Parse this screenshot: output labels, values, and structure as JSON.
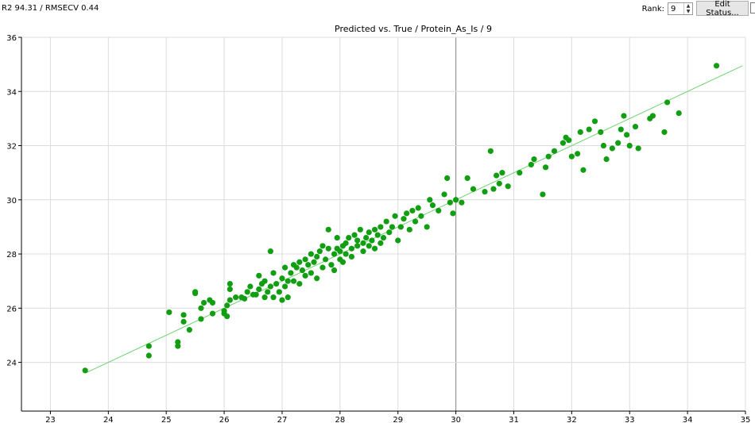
{
  "header": {
    "stats_text": "R2 94.31 / RMSECV 0.44",
    "rank_label": "Rank:",
    "rank_value": "9",
    "edit_button_label": "Edit Status..."
  },
  "chart_data": {
    "type": "scatter",
    "title": "Predicted vs. True / Protein_As_Is / 9",
    "xlabel": "",
    "ylabel": "",
    "xlim": [
      22.5,
      35
    ],
    "ylim": [
      22.2,
      36
    ],
    "x_ticks": [
      23,
      24,
      25,
      26,
      27,
      28,
      29,
      30,
      31,
      32,
      33,
      34,
      35
    ],
    "y_ticks": [
      24,
      26,
      28,
      30,
      32,
      34,
      36
    ],
    "grid": true,
    "highlight_x": 30,
    "colors": {
      "points": "#129e12",
      "fit_line": "#6fd36f",
      "grid": "#dcdcdc",
      "highlight": "#9a9a9a"
    },
    "fit_line": {
      "x": [
        23.6,
        34.95
      ],
      "y": [
        23.6,
        34.95
      ]
    },
    "points": [
      [
        23.6,
        23.7
      ],
      [
        24.7,
        24.6
      ],
      [
        24.7,
        24.25
      ],
      [
        25.05,
        25.85
      ],
      [
        25.2,
        24.6
      ],
      [
        25.2,
        24.75
      ],
      [
        25.3,
        25.5
      ],
      [
        25.3,
        25.75
      ],
      [
        25.4,
        25.2
      ],
      [
        25.5,
        26.55
      ],
      [
        25.5,
        26.6
      ],
      [
        25.6,
        25.6
      ],
      [
        25.6,
        26.0
      ],
      [
        25.65,
        26.2
      ],
      [
        25.75,
        26.3
      ],
      [
        25.8,
        26.2
      ],
      [
        25.8,
        25.8
      ],
      [
        26.0,
        25.8
      ],
      [
        26.0,
        25.9
      ],
      [
        26.05,
        26.1
      ],
      [
        26.05,
        25.7
      ],
      [
        26.1,
        26.3
      ],
      [
        26.1,
        26.9
      ],
      [
        26.1,
        26.7
      ],
      [
        26.2,
        26.4
      ],
      [
        26.3,
        26.4
      ],
      [
        26.35,
        26.35
      ],
      [
        26.4,
        26.6
      ],
      [
        26.45,
        26.8
      ],
      [
        26.5,
        26.5
      ],
      [
        26.55,
        26.5
      ],
      [
        26.6,
        27.2
      ],
      [
        26.6,
        26.7
      ],
      [
        26.65,
        26.9
      ],
      [
        26.7,
        26.4
      ],
      [
        26.7,
        27.0
      ],
      [
        26.75,
        26.6
      ],
      [
        26.8,
        26.8
      ],
      [
        26.8,
        28.1
      ],
      [
        26.85,
        27.3
      ],
      [
        26.85,
        26.4
      ],
      [
        26.9,
        26.9
      ],
      [
        26.95,
        26.6
      ],
      [
        27.0,
        27.1
      ],
      [
        27.0,
        26.3
      ],
      [
        27.05,
        27.5
      ],
      [
        27.05,
        26.8
      ],
      [
        27.1,
        27.0
      ],
      [
        27.1,
        26.4
      ],
      [
        27.15,
        27.3
      ],
      [
        27.2,
        27.0
      ],
      [
        27.2,
        27.6
      ],
      [
        27.25,
        27.5
      ],
      [
        27.3,
        27.7
      ],
      [
        27.3,
        26.9
      ],
      [
        27.35,
        27.4
      ],
      [
        27.4,
        27.2
      ],
      [
        27.4,
        27.8
      ],
      [
        27.45,
        27.6
      ],
      [
        27.5,
        28.0
      ],
      [
        27.5,
        27.3
      ],
      [
        27.55,
        27.7
      ],
      [
        27.6,
        27.1
      ],
      [
        27.6,
        27.9
      ],
      [
        27.65,
        28.1
      ],
      [
        27.7,
        27.5
      ],
      [
        27.7,
        28.3
      ],
      [
        27.75,
        27.8
      ],
      [
        27.8,
        28.9
      ],
      [
        27.8,
        28.2
      ],
      [
        27.85,
        27.6
      ],
      [
        27.9,
        28.0
      ],
      [
        27.9,
        27.4
      ],
      [
        27.95,
        28.2
      ],
      [
        27.95,
        28.6
      ],
      [
        28.0,
        27.8
      ],
      [
        28.0,
        28.1
      ],
      [
        28.05,
        28.3
      ],
      [
        28.05,
        27.7
      ],
      [
        28.1,
        28.4
      ],
      [
        28.1,
        28.0
      ],
      [
        28.15,
        28.6
      ],
      [
        28.2,
        28.2
      ],
      [
        28.2,
        27.9
      ],
      [
        28.25,
        28.7
      ],
      [
        28.3,
        28.3
      ],
      [
        28.3,
        28.5
      ],
      [
        28.35,
        28.9
      ],
      [
        28.4,
        28.4
      ],
      [
        28.4,
        28.1
      ],
      [
        28.45,
        28.6
      ],
      [
        28.5,
        28.8
      ],
      [
        28.5,
        28.3
      ],
      [
        28.55,
        28.5
      ],
      [
        28.6,
        28.9
      ],
      [
        28.6,
        28.2
      ],
      [
        28.65,
        28.7
      ],
      [
        28.7,
        29.0
      ],
      [
        28.7,
        28.4
      ],
      [
        28.75,
        28.6
      ],
      [
        28.8,
        29.2
      ],
      [
        28.85,
        28.8
      ],
      [
        28.9,
        29.0
      ],
      [
        28.95,
        29.4
      ],
      [
        29.0,
        28.5
      ],
      [
        29.05,
        29.0
      ],
      [
        29.1,
        29.3
      ],
      [
        29.15,
        29.5
      ],
      [
        29.2,
        28.9
      ],
      [
        29.25,
        29.6
      ],
      [
        29.3,
        29.2
      ],
      [
        29.35,
        29.7
      ],
      [
        29.4,
        29.4
      ],
      [
        29.5,
        29.0
      ],
      [
        29.55,
        30.0
      ],
      [
        29.6,
        29.8
      ],
      [
        29.7,
        29.6
      ],
      [
        29.8,
        30.2
      ],
      [
        29.85,
        30.8
      ],
      [
        29.9,
        29.9
      ],
      [
        29.95,
        29.5
      ],
      [
        30.0,
        30.0
      ],
      [
        30.1,
        29.9
      ],
      [
        30.2,
        30.8
      ],
      [
        30.3,
        30.4
      ],
      [
        30.5,
        30.3
      ],
      [
        30.6,
        31.8
      ],
      [
        30.65,
        30.4
      ],
      [
        30.7,
        30.9
      ],
      [
        30.75,
        30.6
      ],
      [
        30.8,
        31.0
      ],
      [
        30.9,
        30.5
      ],
      [
        31.1,
        31.0
      ],
      [
        31.3,
        31.3
      ],
      [
        31.35,
        31.5
      ],
      [
        31.5,
        30.2
      ],
      [
        31.55,
        31.2
      ],
      [
        31.6,
        31.6
      ],
      [
        31.7,
        31.8
      ],
      [
        31.85,
        32.1
      ],
      [
        31.9,
        32.3
      ],
      [
        31.95,
        32.2
      ],
      [
        32.0,
        31.6
      ],
      [
        32.1,
        31.7
      ],
      [
        32.15,
        32.5
      ],
      [
        32.2,
        31.1
      ],
      [
        32.3,
        32.6
      ],
      [
        32.4,
        32.9
      ],
      [
        32.5,
        32.5
      ],
      [
        32.55,
        32.0
      ],
      [
        32.6,
        31.5
      ],
      [
        32.7,
        31.9
      ],
      [
        32.8,
        32.1
      ],
      [
        32.85,
        32.6
      ],
      [
        32.9,
        33.1
      ],
      [
        32.95,
        32.4
      ],
      [
        33.0,
        32.0
      ],
      [
        33.1,
        32.7
      ],
      [
        33.15,
        31.9
      ],
      [
        33.35,
        33.0
      ],
      [
        33.4,
        33.1
      ],
      [
        33.6,
        32.5
      ],
      [
        33.65,
        33.6
      ],
      [
        33.85,
        33.2
      ],
      [
        34.5,
        34.95
      ]
    ]
  }
}
